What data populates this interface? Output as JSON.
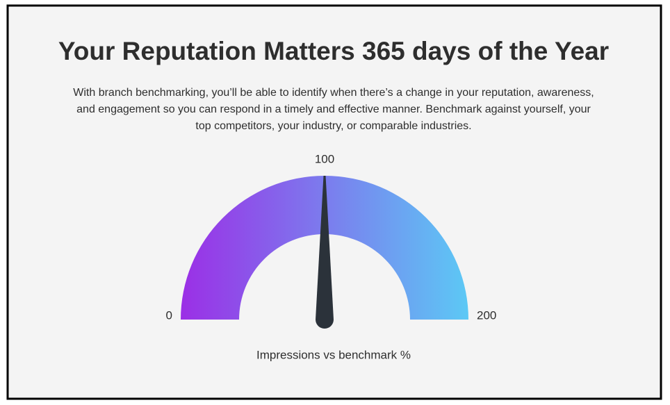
{
  "chart_data": {
    "type": "gauge",
    "title": "Your Reputation Matters 365 days of the Year",
    "subtitle": [
      "With branch benchmarking, you’ll be able to identify when there’s a change in your reputation, awareness,",
      "and engagement so you can respond in a timely and effective manner. Benchmark against yourself, your",
      "top competitors, your industry, or comparable industries."
    ],
    "value": 100,
    "xlim": [
      0,
      200
    ],
    "xticks": [
      0,
      100,
      200
    ],
    "xlabel": "Impressions vs benchmark %",
    "colors": [
      "#9b2fe6",
      "#5cc9f5"
    ],
    "needle_color": "#2b323a"
  }
}
